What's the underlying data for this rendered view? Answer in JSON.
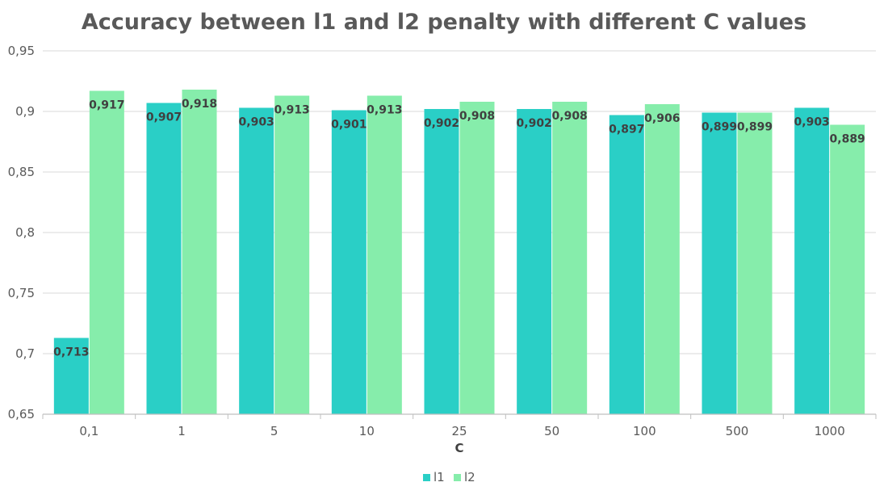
{
  "chart_data": {
    "type": "bar",
    "title": "Accuracy between l1 and l2 penalty with different C values",
    "xlabel": "C",
    "ylabel": "",
    "categories": [
      "0,1",
      "1",
      "5",
      "10",
      "25",
      "50",
      "100",
      "500",
      "1000"
    ],
    "series": [
      {
        "name": "l1",
        "color": "#2ACFC6",
        "values": [
          0.713,
          0.907,
          0.903,
          0.901,
          0.902,
          0.902,
          0.897,
          0.899,
          0.903
        ],
        "labels": [
          "0,713",
          "0,907",
          "0,903",
          "0,901",
          "0,902",
          "0,902",
          "0,897",
          "0,899",
          "0,903"
        ]
      },
      {
        "name": "l2",
        "color": "#86EDAB",
        "values": [
          0.917,
          0.918,
          0.913,
          0.913,
          0.908,
          0.908,
          0.906,
          0.899,
          0.889
        ],
        "labels": [
          "0,917",
          "0,918",
          "0,913",
          "0,913",
          "0,908",
          "0,908",
          "0,906",
          "0,899",
          "0,889"
        ]
      }
    ],
    "ylim": [
      0.65,
      0.95
    ],
    "yticks": [
      0.65,
      0.7,
      0.75,
      0.8,
      0.85,
      0.9,
      0.95
    ],
    "ytick_labels": [
      "0,65",
      "0,7",
      "0,75",
      "0,8",
      "0,85",
      "0,9",
      "0,95"
    ],
    "grid": true,
    "legend": "bottom-center"
  }
}
